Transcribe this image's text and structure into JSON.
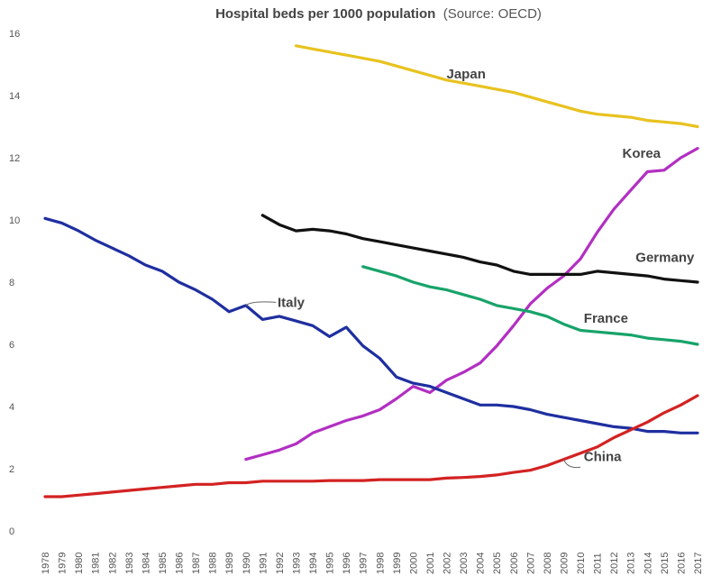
{
  "chart_data": {
    "type": "line",
    "title": "Hospital beds per 1000 population",
    "subtitle": "(Source: OECD)",
    "xlabel": "",
    "ylabel": "",
    "ylim": [
      0,
      16
    ],
    "yticks": [
      0,
      2,
      4,
      6,
      8,
      10,
      12,
      14,
      16
    ],
    "grid": false,
    "categories": [
      "1978",
      "1979",
      "1980",
      "1981",
      "1982",
      "1983",
      "1984",
      "1985",
      "1986",
      "1987",
      "1988",
      "1989",
      "1990",
      "1991",
      "1992",
      "1993",
      "1994",
      "1995",
      "1996",
      "1997",
      "1998",
      "1999",
      "2000",
      "2001",
      "2002",
      "2003",
      "2004",
      "2005",
      "2006",
      "2007",
      "2008",
      "2009",
      "2010",
      "2011",
      "2012",
      "2013",
      "2014",
      "2015",
      "2016",
      "2017"
    ],
    "series": [
      {
        "name": "Japan",
        "color": "#e8c21f",
        "values": [
          null,
          null,
          null,
          null,
          null,
          null,
          null,
          null,
          null,
          null,
          null,
          null,
          null,
          null,
          null,
          15.6,
          15.5,
          15.4,
          15.3,
          15.2,
          15.1,
          14.95,
          14.8,
          14.65,
          14.5,
          14.4,
          14.3,
          14.2,
          14.1,
          13.95,
          13.8,
          13.65,
          13.5,
          13.4,
          13.35,
          13.3,
          13.2,
          13.15,
          13.1,
          13.0
        ]
      },
      {
        "name": "Korea",
        "color": "#b22fc2",
        "values": [
          null,
          null,
          null,
          null,
          null,
          null,
          null,
          null,
          null,
          null,
          null,
          null,
          2.3,
          2.45,
          2.6,
          2.8,
          3.15,
          3.35,
          3.55,
          3.7,
          3.9,
          4.25,
          4.65,
          4.45,
          4.85,
          5.1,
          5.4,
          5.95,
          6.6,
          7.3,
          7.8,
          8.2,
          8.75,
          9.6,
          10.35,
          10.95,
          11.55,
          11.6,
          12.0,
          12.3
        ]
      },
      {
        "name": "Germany",
        "color": "#111111",
        "values": [
          null,
          null,
          null,
          null,
          null,
          null,
          null,
          null,
          null,
          null,
          null,
          null,
          null,
          10.15,
          9.85,
          9.65,
          9.7,
          9.65,
          9.55,
          9.4,
          9.3,
          9.2,
          9.1,
          9.0,
          8.9,
          8.8,
          8.65,
          8.55,
          8.35,
          8.25,
          8.25,
          8.25,
          8.25,
          8.35,
          8.3,
          8.25,
          8.2,
          8.1,
          8.05,
          8.0
        ]
      },
      {
        "name": "France",
        "color": "#17a36a",
        "values": [
          null,
          null,
          null,
          null,
          null,
          null,
          null,
          null,
          null,
          null,
          null,
          null,
          null,
          null,
          null,
          null,
          null,
          null,
          null,
          8.5,
          8.35,
          8.2,
          8.0,
          7.85,
          7.75,
          7.6,
          7.45,
          7.25,
          7.15,
          7.05,
          6.9,
          6.65,
          6.45,
          6.4,
          6.35,
          6.3,
          6.2,
          6.15,
          6.1,
          6.0
        ]
      },
      {
        "name": "Italy",
        "color": "#1f2fa0",
        "values": [
          10.05,
          9.9,
          9.65,
          9.35,
          9.1,
          8.85,
          8.55,
          8.35,
          8.0,
          7.75,
          7.45,
          7.05,
          7.25,
          6.8,
          6.9,
          6.75,
          6.6,
          6.25,
          6.55,
          5.95,
          5.55,
          4.95,
          4.75,
          4.65,
          4.45,
          4.25,
          4.05,
          4.05,
          4.0,
          3.9,
          3.75,
          3.65,
          3.55,
          3.45,
          3.35,
          3.3,
          3.2,
          3.2,
          3.15,
          3.15
        ]
      },
      {
        "name": "China",
        "color": "#d32222",
        "values": [
          1.1,
          1.1,
          1.15,
          1.2,
          1.25,
          1.3,
          1.35,
          1.4,
          1.45,
          1.5,
          1.5,
          1.55,
          1.55,
          1.6,
          1.6,
          1.6,
          1.6,
          1.62,
          1.62,
          1.62,
          1.65,
          1.65,
          1.65,
          1.65,
          1.7,
          1.72,
          1.75,
          1.8,
          1.88,
          1.95,
          2.1,
          2.3,
          2.5,
          2.7,
          3.0,
          3.25,
          3.5,
          3.8,
          4.05,
          4.35
        ]
      }
    ],
    "labels": {
      "Japan": "Japan",
      "Korea": "Korea",
      "Germany": "Germany",
      "France": "France",
      "Italy": "Italy",
      "China": "China"
    }
  }
}
